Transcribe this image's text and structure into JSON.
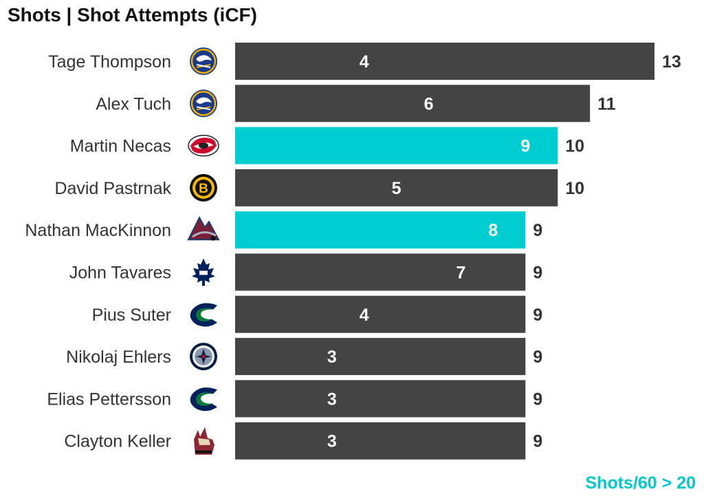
{
  "chart_data": {
    "type": "bar",
    "title": "Shots | Shot Attempts (iCF)",
    "footnote": "Shots/60 > 20",
    "xlim": [
      0,
      13
    ],
    "grid": false,
    "colors": {
      "default": "#444444",
      "highlight": "#00cdd0"
    },
    "players": [
      {
        "name": "Tage Thompson",
        "team_icon": "sabres-logo-icon",
        "shots": 4,
        "attempts": 13,
        "highlight": false
      },
      {
        "name": "Alex Tuch",
        "team_icon": "sabres-logo-icon",
        "shots": 6,
        "attempts": 11,
        "highlight": false
      },
      {
        "name": "Martin Necas",
        "team_icon": "hurricanes-logo-icon",
        "shots": 9,
        "attempts": 10,
        "highlight": true
      },
      {
        "name": "David Pastrnak",
        "team_icon": "bruins-logo-icon",
        "shots": 5,
        "attempts": 10,
        "highlight": false
      },
      {
        "name": "Nathan MacKinnon",
        "team_icon": "avalanche-logo-icon",
        "shots": 8,
        "attempts": 9,
        "highlight": true
      },
      {
        "name": "John Tavares",
        "team_icon": "maple-leafs-logo-icon",
        "shots": 7,
        "attempts": 9,
        "highlight": false
      },
      {
        "name": "Pius Suter",
        "team_icon": "canucks-logo-icon",
        "shots": 4,
        "attempts": 9,
        "highlight": false
      },
      {
        "name": "Nikolaj Ehlers",
        "team_icon": "jets-logo-icon",
        "shots": 3,
        "attempts": 9,
        "highlight": false
      },
      {
        "name": "Elias Pettersson",
        "team_icon": "canucks-logo-icon",
        "shots": 3,
        "attempts": 9,
        "highlight": false
      },
      {
        "name": "Clayton Keller",
        "team_icon": "coyotes-logo-icon",
        "shots": 3,
        "attempts": 9,
        "highlight": false
      }
    ]
  }
}
